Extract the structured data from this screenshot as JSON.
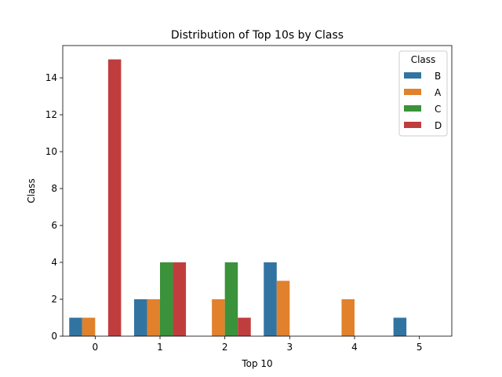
{
  "chart_data": {
    "type": "bar",
    "title": "Distribution of Top 10s by Class",
    "xlabel": "Top 10",
    "ylabel": "Class",
    "categories": [
      "0",
      "1",
      "2",
      "3",
      "4",
      "5"
    ],
    "ylim": [
      0,
      15.75
    ],
    "yticks": [
      0,
      2,
      4,
      6,
      8,
      10,
      12,
      14
    ],
    "grid": false,
    "legend": {
      "title": "Class",
      "placement": "top-right"
    },
    "series": [
      {
        "name": "B",
        "color": "#3274a1",
        "values": [
          1,
          2,
          0,
          4,
          0,
          1
        ]
      },
      {
        "name": "A",
        "color": "#e1812c",
        "values": [
          1,
          2,
          2,
          3,
          2,
          0
        ]
      },
      {
        "name": "C",
        "color": "#3a923a",
        "values": [
          0,
          4,
          4,
          0,
          0,
          0
        ]
      },
      {
        "name": "D",
        "color": "#c03d3e",
        "values": [
          15,
          4,
          1,
          0,
          0,
          0
        ]
      }
    ]
  }
}
